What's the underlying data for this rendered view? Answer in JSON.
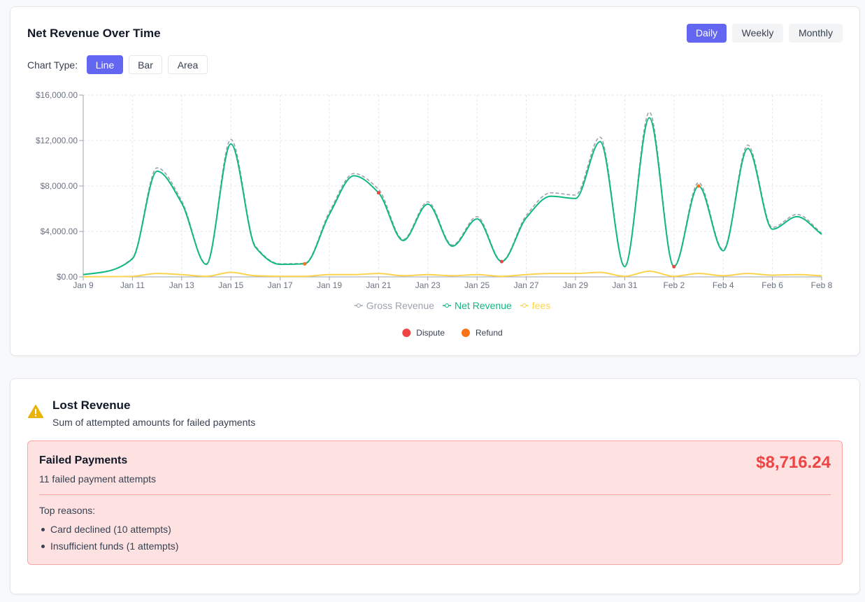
{
  "header": {
    "title": "Net Revenue Over Time"
  },
  "period_buttons": [
    {
      "label": "Daily",
      "active": true
    },
    {
      "label": "Weekly",
      "active": false
    },
    {
      "label": "Monthly",
      "active": false
    }
  ],
  "chart_type": {
    "label": "Chart Type:",
    "options": [
      {
        "label": "Line",
        "active": true
      },
      {
        "label": "Bar",
        "active": false
      },
      {
        "label": "Area",
        "active": false
      }
    ]
  },
  "chart_data": {
    "type": "line",
    "grid": true,
    "categories": [
      "Jan 9",
      null,
      "Jan 11",
      null,
      "Jan 13",
      null,
      "Jan 15",
      null,
      "Jan 17",
      null,
      "Jan 19",
      null,
      "Jan 21",
      null,
      "Jan 23",
      null,
      "Jan 25",
      null,
      "Jan 27",
      null,
      "Jan 29",
      null,
      "Jan 31",
      null,
      "Feb 2",
      null,
      "Feb 4",
      null,
      "Feb 6",
      null,
      "Feb 8"
    ],
    "ylim": [
      0,
      16000
    ],
    "yticks": [
      {
        "value": 0,
        "label": "$0.00"
      },
      {
        "value": 4000,
        "label": "$4,000.00"
      },
      {
        "value": 8000,
        "label": "$8,000.00"
      },
      {
        "value": 12000,
        "label": "$12,000.00"
      },
      {
        "value": 16000,
        "label": "$16,000.00"
      }
    ],
    "series": [
      {
        "name": "Gross Revenue",
        "color": "#9ca3af",
        "dashed": true,
        "values": [
          210,
          520,
          1650,
          9600,
          6700,
          1150,
          12100,
          2700,
          1150,
          1200,
          5700,
          9100,
          7700,
          3300,
          6600,
          2800,
          5300,
          1400,
          5400,
          7400,
          7200,
          12300,
          950,
          14500,
          950,
          8300,
          2400,
          11600,
          4350,
          5500,
          3850
        ]
      },
      {
        "name": "Net Revenue",
        "color": "#10b981",
        "dashed": false,
        "values": [
          200,
          500,
          1600,
          9300,
          6500,
          1100,
          11700,
          2600,
          1100,
          1150,
          5500,
          8900,
          7400,
          3200,
          6400,
          2700,
          5100,
          1350,
          5200,
          7100,
          6900,
          11900,
          900,
          14000,
          900,
          8000,
          2300,
          11300,
          4200,
          5300,
          3750
        ]
      },
      {
        "name": "fees",
        "color": "#fcd34d",
        "dashed": false,
        "values": [
          10,
          20,
          50,
          300,
          200,
          50,
          400,
          100,
          50,
          50,
          200,
          200,
          300,
          100,
          200,
          100,
          200,
          50,
          200,
          300,
          300,
          400,
          50,
          500,
          50,
          300,
          100,
          300,
          150,
          200,
          100
        ]
      }
    ],
    "events": [
      {
        "name": "Dispute",
        "color": "#ef4444",
        "values": [
          null,
          null,
          null,
          null,
          null,
          null,
          null,
          null,
          null,
          null,
          null,
          null,
          7400,
          null,
          null,
          null,
          null,
          1350,
          null,
          null,
          null,
          null,
          null,
          null,
          900,
          null,
          null,
          null,
          null,
          null,
          null
        ]
      },
      {
        "name": "Refund",
        "color": "#f97316",
        "values": [
          null,
          null,
          null,
          null,
          null,
          null,
          null,
          null,
          null,
          1150,
          null,
          null,
          null,
          null,
          null,
          null,
          null,
          null,
          null,
          null,
          null,
          null,
          null,
          null,
          null,
          8000,
          null,
          null,
          null,
          null,
          null
        ]
      }
    ]
  },
  "lost_revenue": {
    "title": "Lost Revenue",
    "subtitle": "Sum of attempted amounts for failed payments",
    "failed": {
      "title": "Failed Payments",
      "count_text": "11 failed payment attempts",
      "amount": "$8,716.24",
      "reasons_title": "Top reasons:",
      "reasons": [
        "Card declined (10 attempts)",
        "Insufficient funds (1 attempts)"
      ]
    }
  }
}
